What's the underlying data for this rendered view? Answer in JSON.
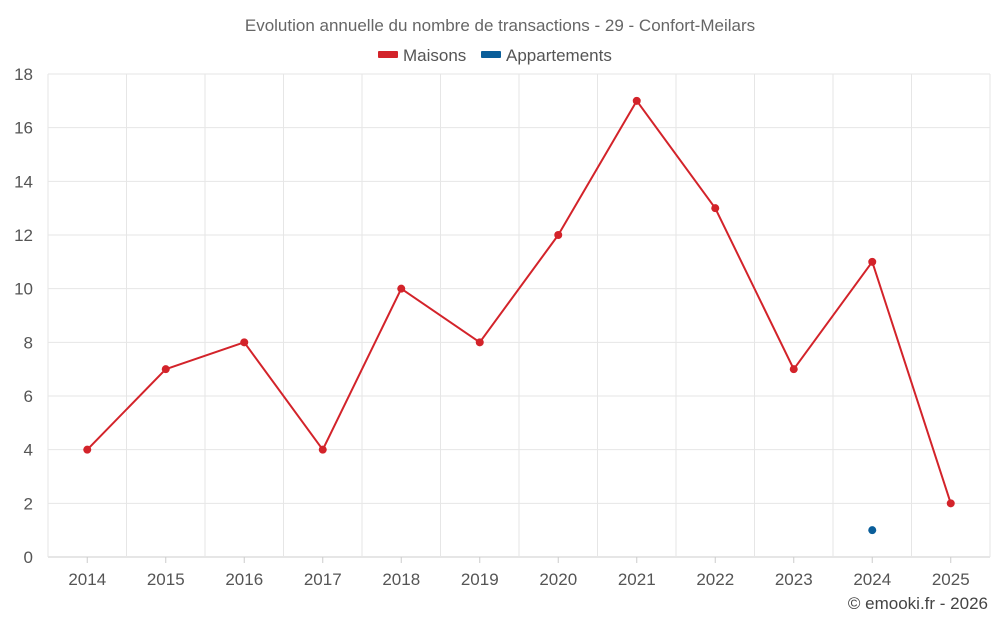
{
  "chart_data": {
    "type": "line",
    "title": "Evolution annuelle du nombre de transactions - 29 - Confort-Meilars",
    "categories": [
      "2014",
      "2015",
      "2016",
      "2017",
      "2018",
      "2019",
      "2020",
      "2021",
      "2022",
      "2023",
      "2024",
      "2025"
    ],
    "series": [
      {
        "name": "Maisons",
        "color": "#d3232a",
        "values": [
          4,
          7,
          8,
          4,
          10,
          8,
          12,
          17,
          13,
          7,
          11,
          2
        ]
      },
      {
        "name": "Appartements",
        "color": "#0a5e9a",
        "values": [
          null,
          null,
          null,
          null,
          null,
          null,
          null,
          null,
          null,
          null,
          1,
          null
        ]
      }
    ],
    "ylim": [
      0,
      18
    ],
    "yticks": [
      0,
      2,
      4,
      6,
      8,
      10,
      12,
      14,
      16,
      18
    ],
    "grid": true,
    "legend_position": "top-center"
  },
  "footer": "© emooki.fr - 2026",
  "colors": {
    "grid": "#e6e6e6",
    "axis": "#cccccc"
  }
}
